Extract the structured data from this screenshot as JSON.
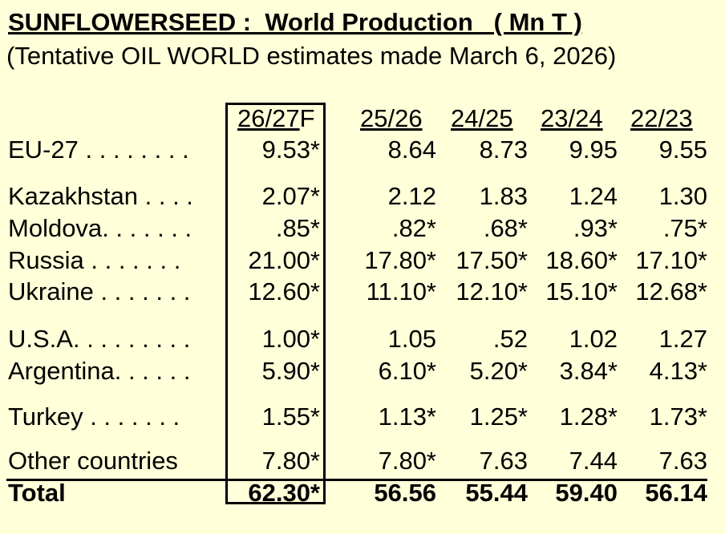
{
  "title": "SUNFLOWERSEED :  World Production   ( Mn T )",
  "subtitle": "(Tentative OIL WORLD estimates made March 6, 2026)",
  "columns": [
    {
      "label": "26/27",
      "suffix": "F"
    },
    {
      "label": "25/26",
      "suffix": ""
    },
    {
      "label": "24/25",
      "suffix": ""
    },
    {
      "label": "23/24",
      "suffix": ""
    },
    {
      "label": "22/23",
      "suffix": ""
    }
  ],
  "rows": [
    {
      "country": "EU-27",
      "dots": " . . . . . . . .",
      "values": [
        "9.53*",
        "8.64",
        "8.73",
        "9.95",
        "9.55"
      ]
    },
    {
      "country": "Kazakhstan",
      "dots": " . . . .",
      "values": [
        "2.07*",
        "2.12",
        "1.83",
        "1.24",
        "1.30"
      ]
    },
    {
      "country": "Moldova",
      "dots": ". . . . . . .",
      "values": [
        ".85*",
        ".82*",
        ".68*",
        ".93*",
        ".75*"
      ]
    },
    {
      "country": "Russia",
      "dots": " . . . . . . .",
      "values": [
        "21.00*",
        "17.80*",
        "17.50*",
        "18.60*",
        "17.10*"
      ]
    },
    {
      "country": "Ukraine",
      "dots": " . . . . . . .",
      "values": [
        "12.60*",
        "11.10*",
        "12.10*",
        "15.10*",
        "12.68*"
      ]
    },
    {
      "country": "U.S.A.",
      "dots": " . . . . . . . .",
      "values": [
        "1.00*",
        "1.05",
        ".52",
        "1.02",
        "1.27"
      ]
    },
    {
      "country": "Argentina",
      "dots": ". . . . . .",
      "values": [
        "5.90*",
        "6.10*",
        "5.20*",
        "3.84*",
        "4.13*"
      ]
    },
    {
      "country": "Turkey",
      "dots": " . . . . . . .",
      "values": [
        "1.55*",
        "1.13*",
        "1.25*",
        "1.28*",
        "1.73*"
      ]
    },
    {
      "country": "Other countries",
      "dots": "",
      "values": [
        "7.80*",
        "7.80*",
        "7.63",
        "7.44",
        "7.63"
      ]
    }
  ],
  "total": {
    "label": "Total",
    "values": [
      "62.30*",
      "56.56",
      "55.44",
      "59.40",
      "56.14"
    ]
  }
}
